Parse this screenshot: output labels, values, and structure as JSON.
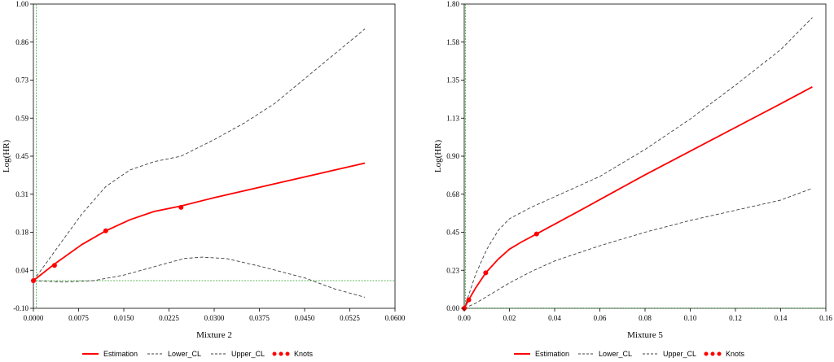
{
  "chart_data": [
    {
      "type": "line",
      "title": "",
      "xlabel": "Mixture 2",
      "ylabel": "Log(HR)",
      "xlim": [
        0,
        0.06
      ],
      "ylim": [
        -0.1,
        1.0
      ],
      "x_ticks": [
        "0.0000",
        "0.0075",
        "0.0150",
        "0.0225",
        "0.0300",
        "0.0375",
        "0.0450",
        "0.0525",
        "0.0600"
      ],
      "y_ticks": [
        "-0.10",
        "0.04",
        "0.18",
        "0.31",
        "0.45",
        "0.59",
        "0.73",
        "0.86",
        "1.00"
      ],
      "ref_x": 0.0005,
      "ref_y": 0.0,
      "series": [
        {
          "name": "Estimation",
          "color": "#ff0000",
          "style": "solid",
          "x": [
            0,
            0.0035,
            0.008,
            0.012,
            0.016,
            0.02,
            0.0245,
            0.03,
            0.04,
            0.05,
            0.055
          ],
          "y": [
            0,
            0.06,
            0.13,
            0.18,
            0.22,
            0.25,
            0.27,
            0.3,
            0.35,
            0.4,
            0.425
          ]
        },
        {
          "name": "Lower_CL",
          "color": "#404040",
          "style": "dashed",
          "x": [
            0,
            0.005,
            0.01,
            0.015,
            0.02,
            0.025,
            0.028,
            0.032,
            0.038,
            0.045,
            0.05,
            0.055
          ],
          "y": [
            0,
            -0.005,
            0.0,
            0.02,
            0.05,
            0.08,
            0.085,
            0.08,
            0.05,
            0.01,
            -0.03,
            -0.06
          ]
        },
        {
          "name": "Upper_CL",
          "color": "#404040",
          "style": "dashed",
          "x": [
            0,
            0.004,
            0.008,
            0.012,
            0.016,
            0.02,
            0.0245,
            0.03,
            0.035,
            0.04,
            0.045,
            0.05,
            0.055
          ],
          "y": [
            0,
            0.12,
            0.24,
            0.34,
            0.4,
            0.43,
            0.45,
            0.51,
            0.57,
            0.64,
            0.73,
            0.82,
            0.91
          ]
        }
      ],
      "knots": {
        "name": "Knots",
        "color": "#ff0000",
        "x": [
          0,
          0.0035,
          0.012,
          0.0245
        ],
        "y": [
          0,
          0.055,
          0.18,
          0.265
        ]
      }
    },
    {
      "type": "line",
      "title": "",
      "xlabel": "Mixture 5",
      "ylabel": "Log(HR)",
      "xlim": [
        0,
        0.16
      ],
      "ylim": [
        0,
        1.8
      ],
      "x_ticks": [
        "0.00",
        "0.02",
        "0.04",
        "0.06",
        "0.08",
        "0.10",
        "0.12",
        "0.14",
        "0.16"
      ],
      "y_ticks": [
        "0.00",
        "0.23",
        "0.45",
        "0.68",
        "0.90",
        "1.13",
        "1.35",
        "1.58",
        "1.80"
      ],
      "ref_x": 0.0005,
      "ref_y": 0.0,
      "series": [
        {
          "name": "Estimation",
          "color": "#ff0000",
          "style": "solid",
          "x": [
            0,
            0.002,
            0.005,
            0.0095,
            0.015,
            0.02,
            0.025,
            0.032,
            0.05,
            0.08,
            0.11,
            0.14,
            0.154
          ],
          "y": [
            0,
            0.05,
            0.12,
            0.21,
            0.29,
            0.35,
            0.39,
            0.44,
            0.57,
            0.79,
            1.0,
            1.21,
            1.31
          ]
        },
        {
          "name": "Lower_CL",
          "color": "#404040",
          "style": "dashed",
          "x": [
            0,
            0.005,
            0.01,
            0.02,
            0.03,
            0.04,
            0.06,
            0.08,
            0.1,
            0.12,
            0.14,
            0.154
          ],
          "y": [
            0,
            0.03,
            0.07,
            0.15,
            0.22,
            0.28,
            0.37,
            0.45,
            0.52,
            0.58,
            0.64,
            0.71
          ]
        },
        {
          "name": "Upper_CL",
          "color": "#404040",
          "style": "dashed",
          "x": [
            0,
            0.005,
            0.01,
            0.015,
            0.02,
            0.03,
            0.04,
            0.06,
            0.08,
            0.1,
            0.12,
            0.14,
            0.154
          ],
          "y": [
            0,
            0.2,
            0.35,
            0.46,
            0.53,
            0.6,
            0.66,
            0.78,
            0.94,
            1.12,
            1.32,
            1.53,
            1.72
          ]
        }
      ],
      "knots": {
        "name": "Knots",
        "color": "#ff0000",
        "x": [
          0,
          0.002,
          0.0095,
          0.032
        ],
        "y": [
          0,
          0.05,
          0.21,
          0.44
        ]
      }
    }
  ],
  "legend": {
    "estimation": "Estimation",
    "lower": "Lower_CL",
    "upper": "Upper_CL",
    "knots": "Knots"
  },
  "colors": {
    "estimation": "#ff0000",
    "ci": "#404040",
    "reference": "#2ca02c",
    "knots": "#ff0000"
  }
}
